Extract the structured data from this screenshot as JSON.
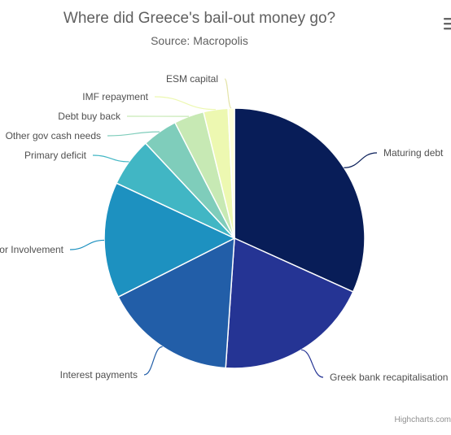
{
  "chart_data": {
    "type": "pie",
    "title": "Where did Greece's bail-out money go?",
    "subtitle": "Source: Macropolis",
    "credits": "Highcharts.com",
    "series": [
      {
        "data": [
          {
            "name": "Maturing debt",
            "value": 32.4,
            "color": "#081d58"
          },
          {
            "name": "Greek bank recapitalisation",
            "value": 19.7,
            "color": "#253494"
          },
          {
            "name": "Interest payments",
            "value": 16.8,
            "color": "#225ea8"
          },
          {
            "name": "Private Sector Involvement",
            "value": 14.7,
            "color": "#1d91c0"
          },
          {
            "name": "Primary deficit",
            "value": 6.2,
            "color": "#41b6c4"
          },
          {
            "name": "Other gov cash needs",
            "value": 4.5,
            "color": "#7fcdbb"
          },
          {
            "name": "Debt buy back",
            "value": 3.8,
            "color": "#c7e9b4"
          },
          {
            "name": "IMF repayment",
            "value": 3.1,
            "color": "#edf8b1"
          },
          {
            "name": "ESM capital",
            "value": 0.8,
            "color": "#ffffd9"
          }
        ]
      }
    ],
    "legend": "none",
    "data_labels": "outside with connectors"
  },
  "ui": {
    "menu_icon": "hamburger-menu-icon"
  }
}
